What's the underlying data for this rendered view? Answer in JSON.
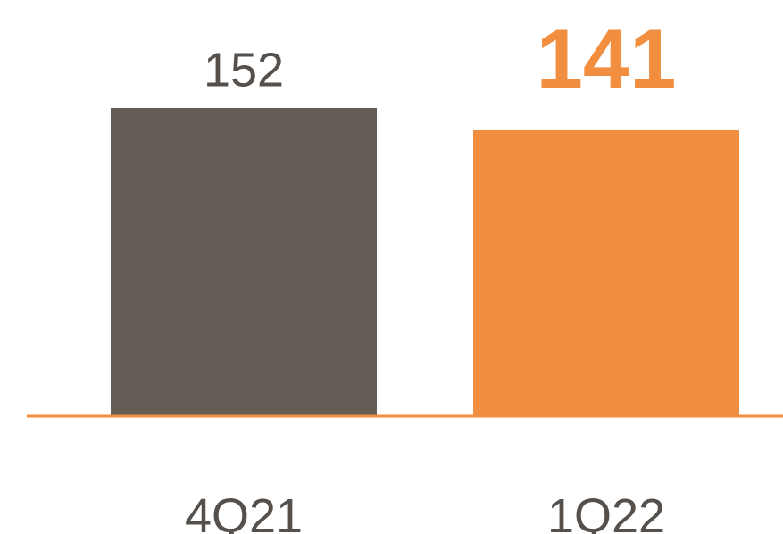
{
  "chart_data": {
    "type": "bar",
    "categories": [
      "4Q21",
      "1Q22"
    ],
    "values": [
      152,
      141
    ],
    "data_labels": [
      "152",
      "141"
    ],
    "title": "",
    "xlabel": "",
    "ylabel": "",
    "ylim": [
      0,
      152
    ],
    "grid": false,
    "legend": "none",
    "colors": {
      "bars": [
        "#645c54",
        "#f28e3f"
      ],
      "data_labels": [
        "#55504b",
        "#f28e3f"
      ],
      "category_labels": "#55504b",
      "baseline": "#f28e3f"
    }
  }
}
